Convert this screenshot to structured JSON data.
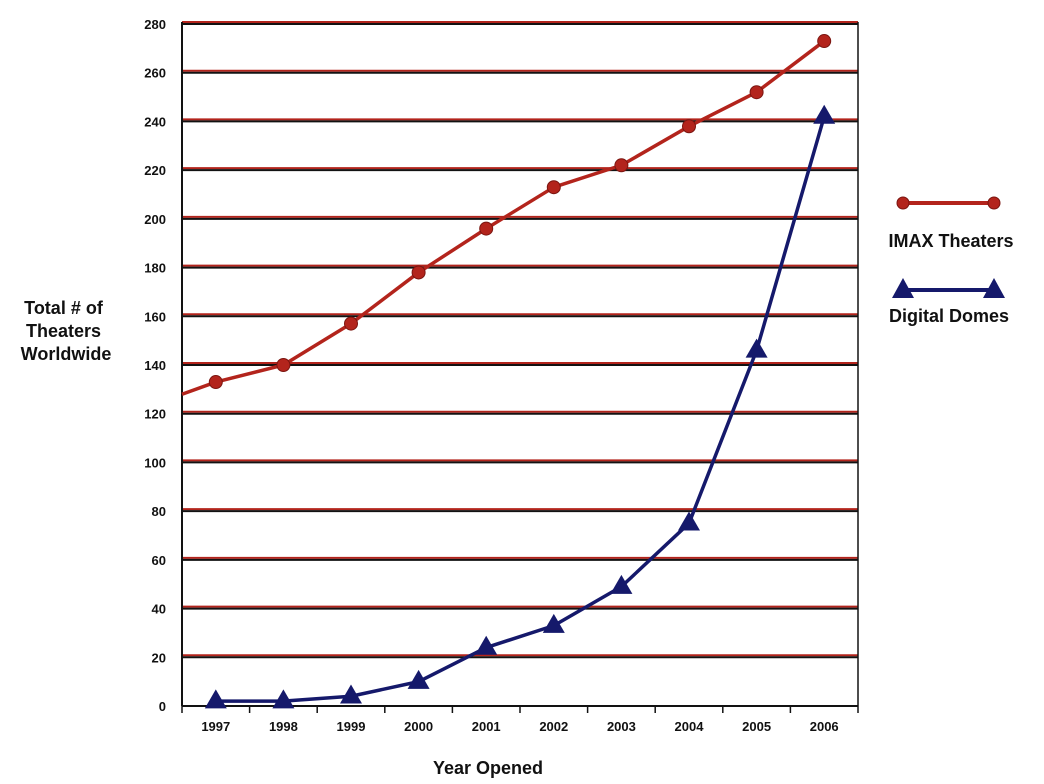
{
  "chart_data": {
    "type": "line",
    "title": "",
    "xlabel": "Year Opened",
    "ylabel": "Total # of Theaters Worldwide",
    "ylabel_lines": [
      "Total # of",
      "Theaters",
      "Worldwide"
    ],
    "ylim": [
      0,
      280
    ],
    "y_ticks": [
      "0",
      "20",
      "40",
      "60",
      "80",
      "100",
      "120",
      "140",
      "160",
      "180",
      "200",
      "220",
      "240",
      "260",
      "280"
    ],
    "categories": [
      "1997",
      "1998",
      "1999",
      "2000",
      "2001",
      "2002",
      "2003",
      "2004",
      "2005",
      "2006"
    ],
    "grid": "horizontal",
    "legend_position": "right",
    "series": [
      {
        "name": "IMAX Theaters",
        "color": "#b3241c",
        "marker": "circle",
        "values": [
          133,
          140,
          157,
          178,
          196,
          213,
          222,
          238,
          252,
          273
        ],
        "line_start_value": 128
      },
      {
        "name": "Digital Domes",
        "color": "#15196b",
        "marker": "triangle",
        "values": [
          2,
          2,
          4,
          10,
          24,
          33,
          49,
          75,
          146,
          242
        ]
      }
    ],
    "colors": {
      "grid_dark": "#121212",
      "grid_red": "#b3241c"
    }
  }
}
